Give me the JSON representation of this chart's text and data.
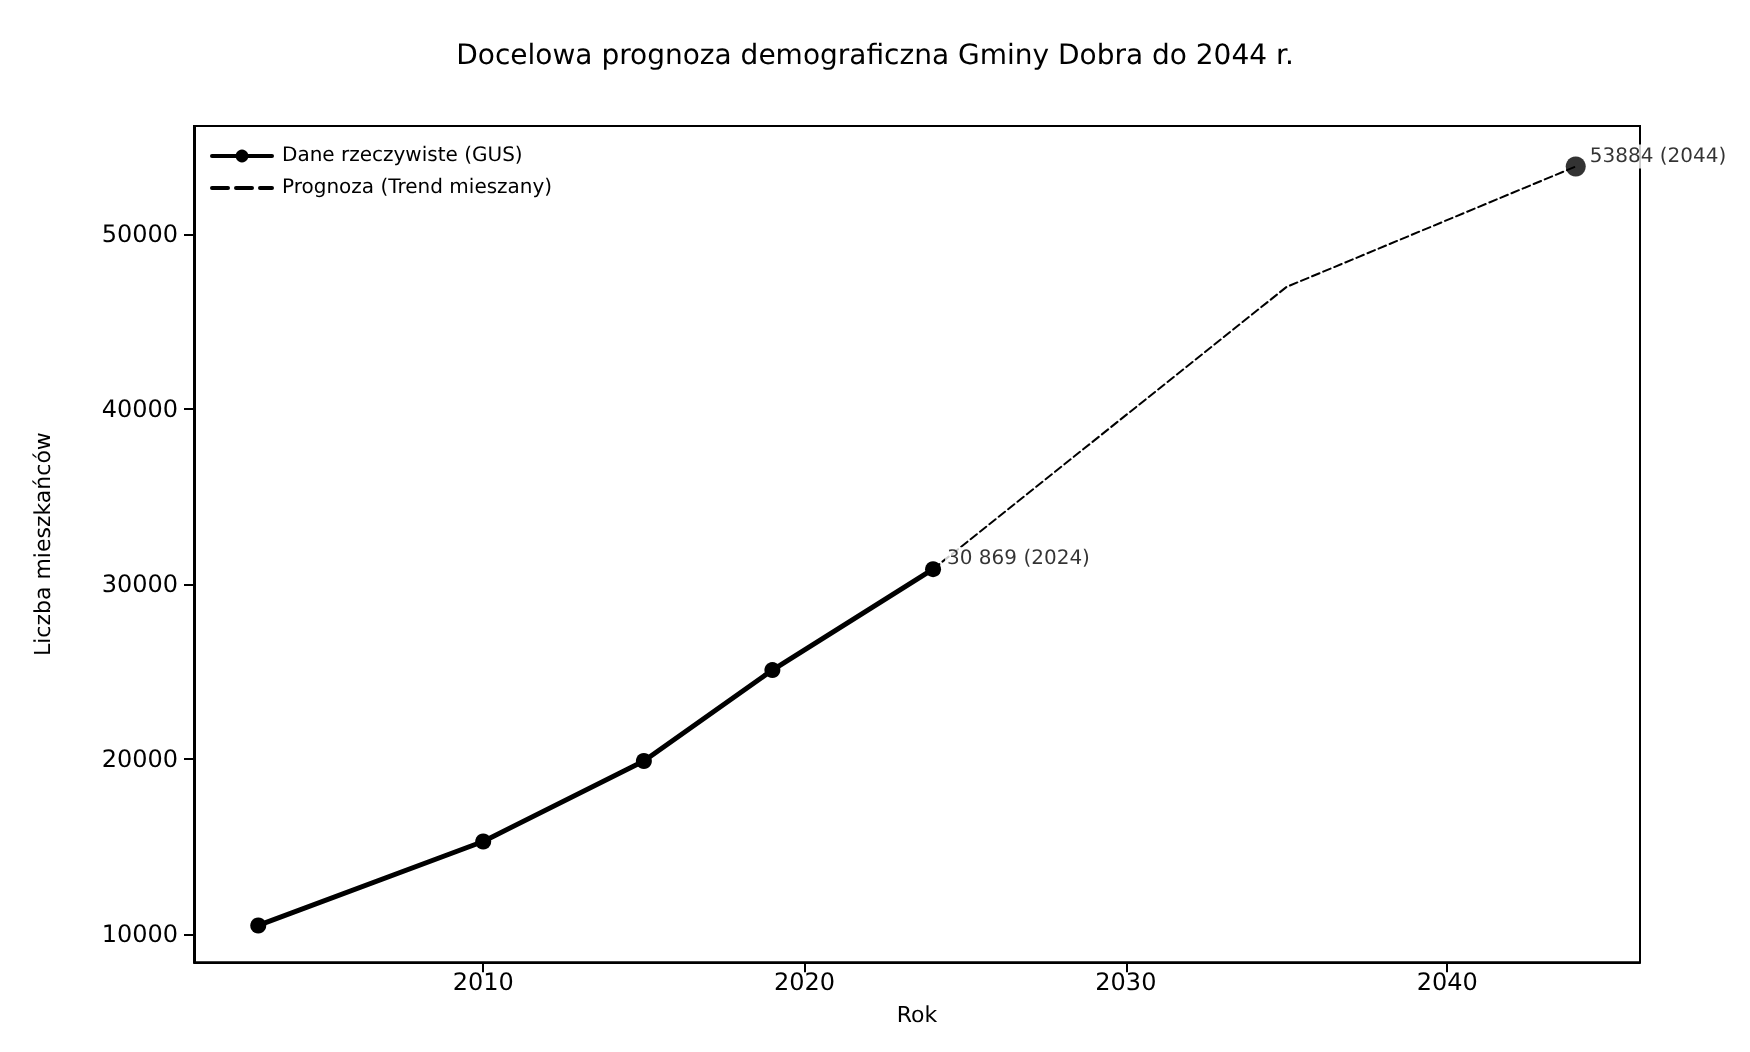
{
  "chart_data": {
    "type": "line",
    "title": "Docelowa prognoza demograficzna Gminy Dobra do 2044 r.",
    "xlabel": "Rok",
    "ylabel": "Liczba mieszkańców",
    "series": [
      {
        "name": "Dane rzeczywiste (GUS)",
        "color": "#000000",
        "x": [
          2003,
          2010,
          2015,
          2019,
          2024
        ],
        "values": [
          10500,
          15300,
          19900,
          25100,
          30869
        ],
        "marker": "circle",
        "line_style": "solid"
      },
      {
        "name": "Prognoza (Trend mieszany)",
        "color": "#000000",
        "x": [
          2024,
          2035,
          2044
        ],
        "values": [
          30869,
          47000,
          53884
        ],
        "marker": "none",
        "line_style": "dashed"
      },
      {
        "type": "scatter",
        "color": "#000000",
        "x": [
          2044
        ],
        "values": [
          53884
        ],
        "marker": "circle"
      }
    ],
    "annotations": [
      {
        "text": "30 869 (2024)",
        "x": 2024,
        "y": 30869
      },
      {
        "text": "53884 (2044)",
        "x": 2044,
        "y": 53884
      }
    ],
    "xlim": [
      2001,
      2046
    ],
    "xticks": [
      2010,
      2020,
      2030,
      2040
    ],
    "ylim": [
      8400,
      56200
    ],
    "yticks": [
      10000,
      20000,
      30000,
      40000,
      50000
    ],
    "grid": false,
    "legend": "top left"
  }
}
